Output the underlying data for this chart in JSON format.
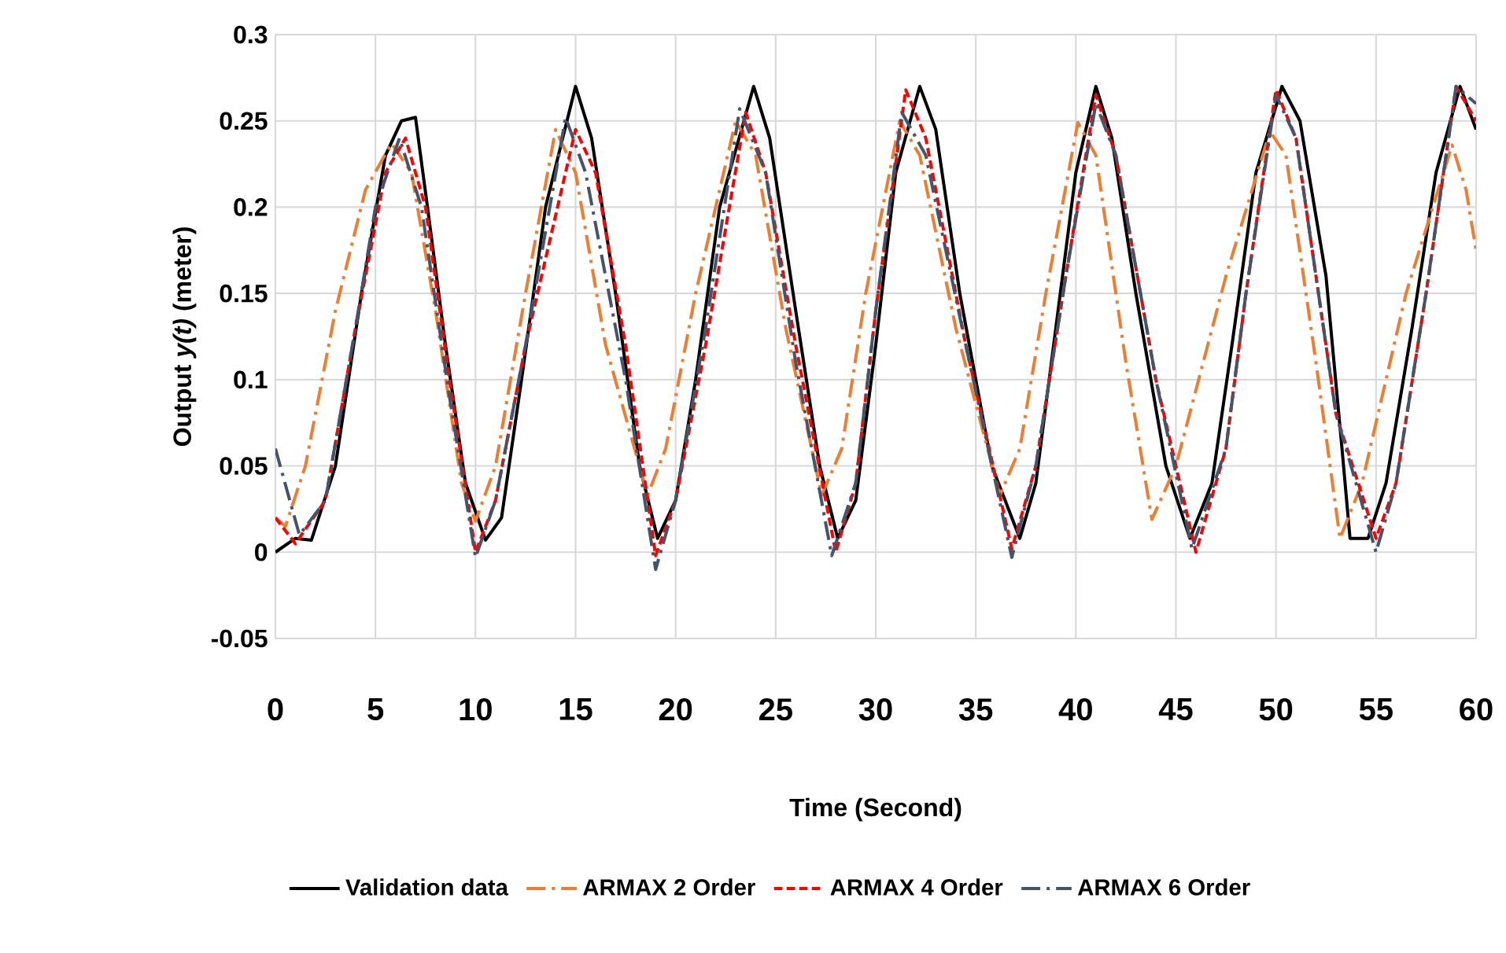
{
  "chart_data": {
    "type": "line",
    "xlabel": "Time (Second)",
    "ylabel": "Output *y(t)* (meter)",
    "xlim": [
      0,
      60
    ],
    "xticks": [
      0,
      5,
      10,
      15,
      20,
      25,
      30,
      35,
      40,
      45,
      50,
      55,
      60
    ],
    "ylim": [
      -0.05,
      0.3
    ],
    "yticks": [
      -0.05,
      0,
      0.05,
      0.1,
      0.15,
      0.2,
      0.25,
      0.3
    ],
    "grid": true,
    "legend": "bottom",
    "series": [
      {
        "name": "Validation data",
        "color": "#000000",
        "line_style": "solid",
        "x": [
          0,
          1,
          1.8,
          3,
          4.3,
          5.5,
          6.3,
          7,
          7.6,
          8.5,
          9.5,
          10.5,
          11.3,
          12.3,
          13.5,
          15,
          15.8,
          17,
          18.2,
          19.1,
          20,
          21,
          22.2,
          23.9,
          24.7,
          26,
          27.2,
          28.1,
          29,
          30,
          31,
          32.2,
          33,
          34.2,
          35.8,
          37.2,
          38,
          39,
          40,
          41,
          41.8,
          43,
          44.5,
          45.7,
          46.8,
          47.8,
          49,
          50.3,
          51.2,
          52.5,
          53.3,
          53.7,
          54.6,
          55.5,
          56.8,
          58,
          59.2,
          60
        ],
        "values": [
          0,
          0.008,
          0.007,
          0.05,
          0.15,
          0.23,
          0.25,
          0.252,
          0.2,
          0.12,
          0.04,
          0.007,
          0.02,
          0.1,
          0.2,
          0.27,
          0.24,
          0.15,
          0.05,
          0.008,
          0.03,
          0.1,
          0.2,
          0.27,
          0.24,
          0.14,
          0.05,
          0.008,
          0.03,
          0.12,
          0.22,
          0.27,
          0.245,
          0.15,
          0.05,
          0.008,
          0.04,
          0.13,
          0.22,
          0.27,
          0.24,
          0.15,
          0.05,
          0.008,
          0.04,
          0.12,
          0.22,
          0.27,
          0.25,
          0.16,
          0.06,
          0.008,
          0.008,
          0.04,
          0.13,
          0.22,
          0.27,
          0.245
        ]
      },
      {
        "name": "ARMAX 2 Order",
        "color": "#ed7d31",
        "line_style": "dashdot",
        "x": [
          0,
          0.5,
          1.5,
          3,
          4.5,
          5.8,
          6.8,
          8,
          9.3,
          10,
          11,
          12.5,
          14,
          15,
          16.5,
          18.6,
          19.5,
          21,
          23,
          24,
          25.5,
          27.3,
          28.3,
          29.5,
          31.2,
          32.2,
          34,
          36.2,
          37.2,
          38.5,
          40.1,
          41,
          42.5,
          43.8,
          45,
          47.5,
          49.7,
          50.5,
          52,
          53.2,
          54.3,
          56.5,
          58.8,
          59.5,
          60
        ],
        "values": [
          0.02,
          0.015,
          0.05,
          0.14,
          0.21,
          0.237,
          0.22,
          0.14,
          0.04,
          0.018,
          0.05,
          0.15,
          0.245,
          0.22,
          0.12,
          0.033,
          0.06,
          0.15,
          0.25,
          0.23,
          0.13,
          0.033,
          0.06,
          0.15,
          0.25,
          0.23,
          0.13,
          0.033,
          0.06,
          0.15,
          0.249,
          0.23,
          0.11,
          0.019,
          0.05,
          0.16,
          0.244,
          0.23,
          0.11,
          0.008,
          0.04,
          0.15,
          0.236,
          0.21,
          0.175
        ]
      },
      {
        "name": "ARMAX 4 Order",
        "color": "#ff0000",
        "line_style": "dashed",
        "x": [
          0,
          1,
          2.5,
          4,
          5.5,
          6.5,
          7.5,
          8.7,
          10,
          11,
          12.5,
          15,
          16,
          17.5,
          19,
          20,
          21.5,
          23.5,
          24.5,
          26,
          28,
          29,
          30,
          31.5,
          32.5,
          34.5,
          36.8,
          38,
          39.5,
          41,
          42,
          44,
          46,
          47.5,
          48.5,
          50,
          51,
          53,
          55,
          56,
          57.5,
          59,
          60
        ],
        "values": [
          0.02,
          0.005,
          0.03,
          0.13,
          0.22,
          0.24,
          0.2,
          0.1,
          0,
          0.03,
          0.12,
          0.245,
          0.22,
          0.12,
          -0.002,
          0.03,
          0.12,
          0.255,
          0.22,
          0.12,
          0,
          0.04,
          0.14,
          0.268,
          0.24,
          0.12,
          0.002,
          0.05,
          0.16,
          0.265,
          0.23,
          0.1,
          0,
          0.06,
          0.15,
          0.268,
          0.24,
          0.08,
          0.008,
          0.04,
          0.15,
          0.27,
          0.25
        ]
      },
      {
        "name": "ARMAX 6 Order",
        "color": "#44546a",
        "line_style": "dashdot",
        "x": [
          0,
          1.2,
          2.5,
          4,
          5,
          6.2,
          7.3,
          8.7,
          10,
          11,
          12.5,
          14.5,
          15.5,
          17.5,
          19,
          20,
          21.5,
          23.2,
          24.5,
          26,
          27.8,
          29,
          30,
          31.3,
          32.5,
          34.5,
          36.8,
          38,
          39.5,
          41,
          42,
          44,
          45.8,
          47.5,
          48.5,
          50,
          51,
          53,
          55,
          56,
          57.5,
          59,
          60
        ],
        "values": [
          0.06,
          0.01,
          0.03,
          0.13,
          0.2,
          0.24,
          0.2,
          0.09,
          -0.003,
          0.03,
          0.12,
          0.252,
          0.22,
          0.1,
          -0.01,
          0.03,
          0.13,
          0.257,
          0.22,
          0.11,
          -0.002,
          0.04,
          0.14,
          0.255,
          0.23,
          0.12,
          -0.003,
          0.05,
          0.16,
          0.26,
          0.23,
          0.1,
          0.002,
          0.06,
          0.15,
          0.265,
          0.24,
          0.08,
          0,
          0.04,
          0.15,
          0.27,
          0.26
        ]
      }
    ]
  }
}
